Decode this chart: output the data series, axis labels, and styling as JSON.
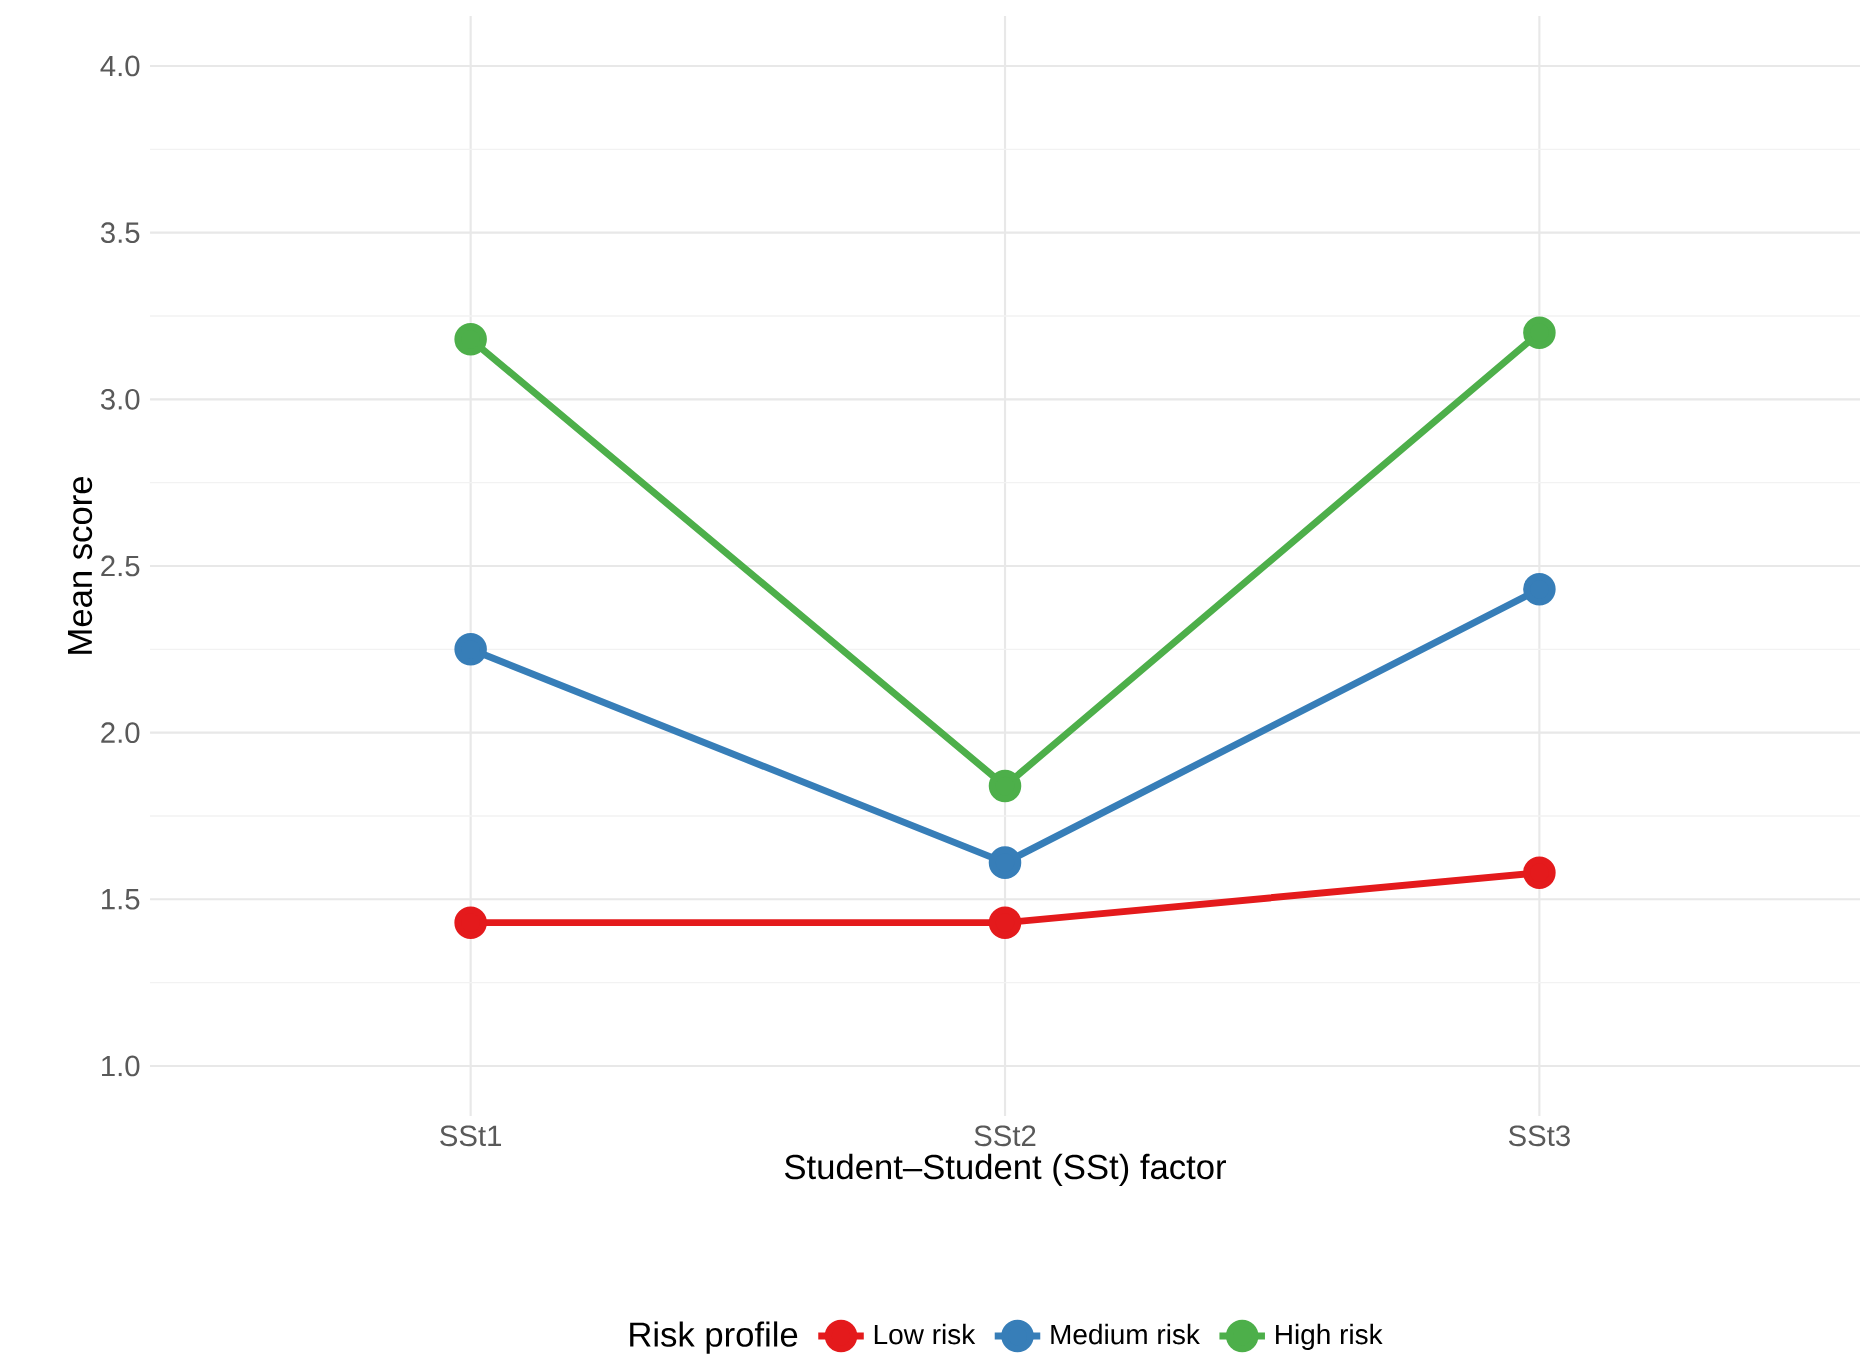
{
  "chart_data": {
    "type": "line",
    "xlabel": "Student–Student (SSt) factor",
    "ylabel": "Mean score",
    "legend_title": "Risk profile",
    "categories": [
      "SSt1",
      "SSt2",
      "SSt3"
    ],
    "series": [
      {
        "name": "Low risk",
        "color": "#e41a1c",
        "values": [
          1.43,
          1.43,
          1.58
        ]
      },
      {
        "name": "Medium risk",
        "color": "#377eb8",
        "values": [
          2.25,
          1.61,
          2.43
        ]
      },
      {
        "name": "High risk",
        "color": "#4daf4a",
        "values": [
          3.18,
          1.84,
          3.2
        ]
      }
    ],
    "ylim": [
      0.85,
      4.15
    ],
    "yticks": [
      {
        "value": 1.0,
        "label": "1.0"
      },
      {
        "value": 1.5,
        "label": "1.5"
      },
      {
        "value": 2.0,
        "label": "2.0"
      },
      {
        "value": 2.5,
        "label": "2.5"
      },
      {
        "value": 3.0,
        "label": "3.0"
      },
      {
        "value": 3.5,
        "label": "3.5"
      },
      {
        "value": 4.0,
        "label": "4.0"
      }
    ],
    "grid": true,
    "legend": "bottom",
    "marker": "circle",
    "line_style": "solid"
  }
}
